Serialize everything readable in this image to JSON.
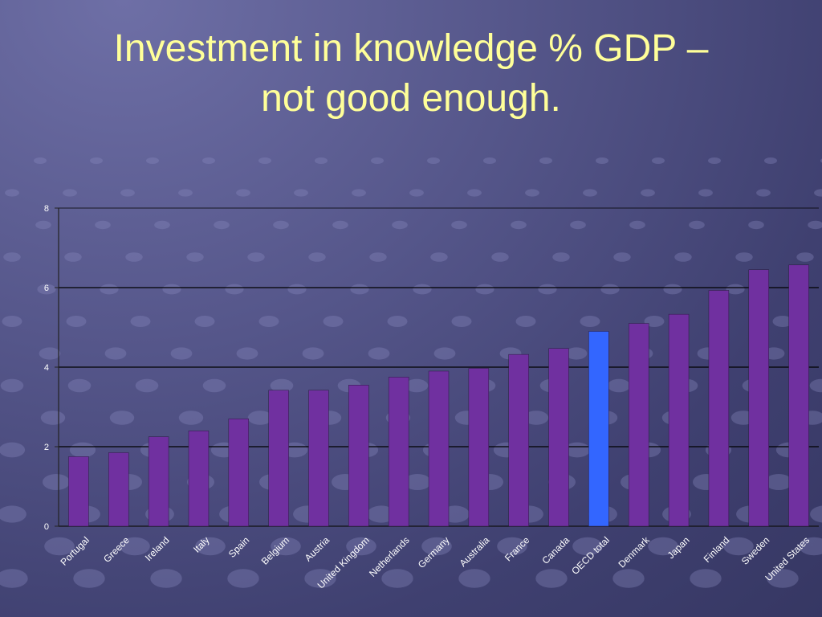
{
  "slide": {
    "title_line1": "Investment in knowledge % GDP –",
    "title_line2": "not good enough."
  },
  "colors": {
    "bar": "#7030a0",
    "highlight_bar": "#3366ff",
    "title": "#ffff99",
    "axis_text": "#ffffff"
  },
  "chart_data": {
    "type": "bar",
    "title": "",
    "xlabel": "",
    "ylabel": "",
    "ylim": [
      0,
      8
    ],
    "yticks": [
      0,
      2,
      4,
      6,
      8
    ],
    "grid": true,
    "highlight": "OECD total",
    "categories": [
      "Portugal",
      "Greece",
      "Ireland",
      "Italy",
      "Spain",
      "Belgium",
      "Austria",
      "United Kingdom",
      "Netherlands",
      "Germany",
      "Australia",
      "France",
      "Canada",
      "OECD total",
      "Denmark",
      "Japan",
      "Finland",
      "Sweden",
      "United States"
    ],
    "values": [
      1.75,
      1.85,
      2.25,
      2.4,
      2.7,
      3.42,
      3.42,
      3.55,
      3.75,
      3.9,
      3.97,
      4.32,
      4.47,
      4.9,
      5.1,
      5.33,
      5.93,
      6.45,
      6.57
    ]
  }
}
